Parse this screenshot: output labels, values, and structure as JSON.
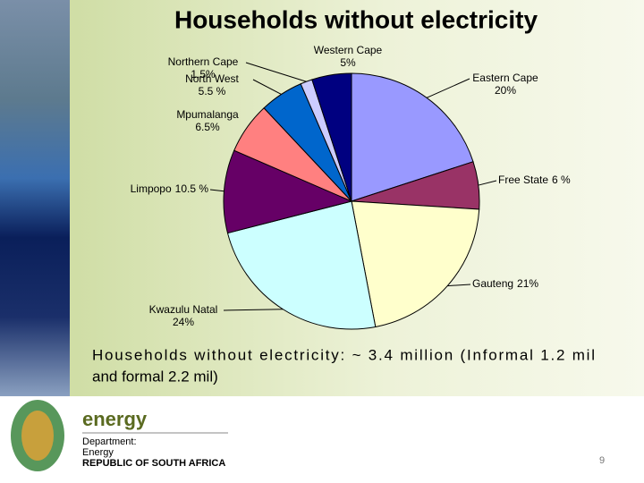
{
  "chart_data": {
    "type": "pie",
    "title": "Households without electricity",
    "categories": [
      "Eastern Cape",
      "Free State",
      "Gauteng",
      "Kwazulu Natal",
      "Limpopo",
      "Mpumalanga",
      "North West",
      "Northern Cape",
      "Western Cape"
    ],
    "values": [
      20,
      6,
      21,
      24,
      10.5,
      6.5,
      5.5,
      1.5,
      5
    ],
    "value_labels": [
      "20%",
      "6 %",
      "21%",
      "24%",
      "10.5 %",
      "6.5%",
      "5.5 %",
      "1.5%",
      "5%"
    ],
    "colors": [
      "#9999ff",
      "#993366",
      "#ffffcc",
      "#ccffff",
      "#660066",
      "#ff8080",
      "#0066cc",
      "#ccccff",
      "#000080"
    ]
  },
  "note": {
    "line1": "Households without electricity: ~ 3.4 million (Informal 1.2 mil",
    "line2": "and formal 2.2 mil)"
  },
  "footer": {
    "brand": "energy",
    "dept": "Department:",
    "dept_name": "Energy",
    "country": "REPUBLIC OF SOUTH AFRICA",
    "page": "9"
  }
}
